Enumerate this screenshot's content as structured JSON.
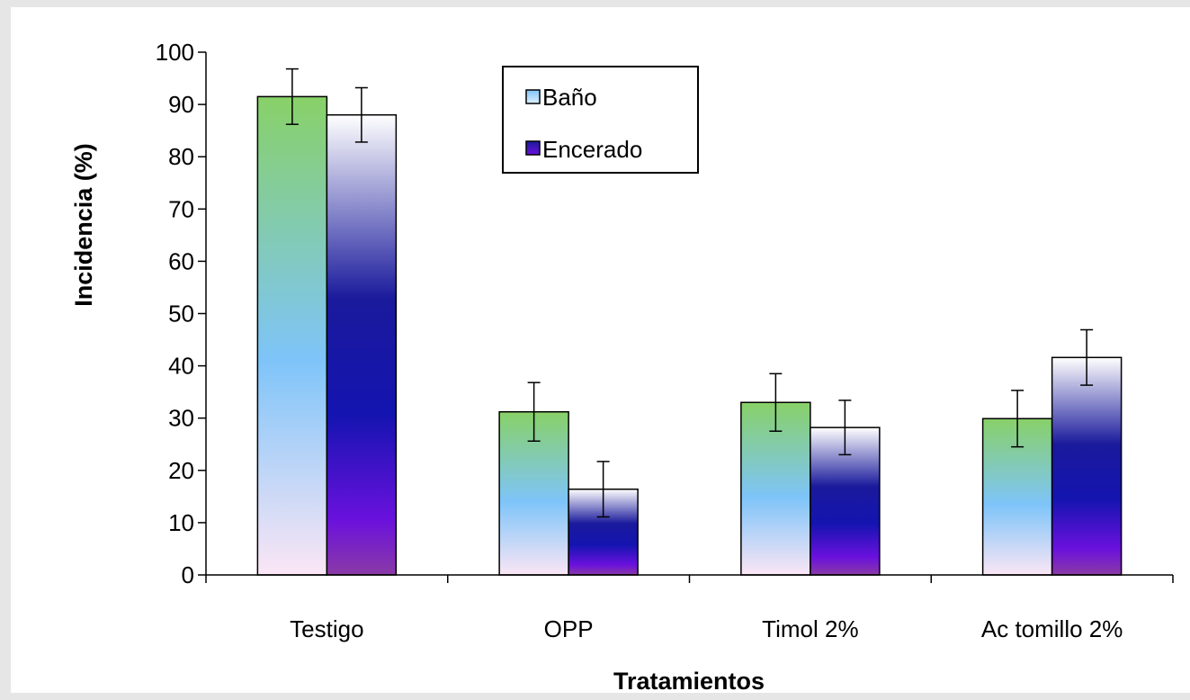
{
  "chart_data": {
    "type": "bar",
    "title": "",
    "xlabel": "Tratamientos",
    "ylabel": "Incidencia (%)",
    "categories": [
      "Testigo",
      "OPP",
      "Timol 2%",
      "Ac tomillo 2%"
    ],
    "ylim": [
      0,
      100
    ],
    "yticks": [
      "0",
      "10",
      "20",
      "30",
      "40",
      "50",
      "60",
      "70",
      "80",
      "90",
      "100"
    ],
    "grid": false,
    "legend_position": "top-center",
    "error_bars": true,
    "series": [
      {
        "name": "Baño",
        "values": [
          91.5,
          31.2,
          33.0,
          29.9
        ],
        "errors": [
          5.3,
          5.6,
          5.5,
          5.4
        ],
        "colors": [
          "#fbe6f5",
          "#7ec4f9",
          "#88d168"
        ]
      },
      {
        "name": "Encerado",
        "values": [
          88.0,
          16.4,
          28.2,
          41.6
        ],
        "errors": [
          5.2,
          5.3,
          5.2,
          5.3
        ],
        "colors": [
          "#8a3aa6",
          "#6a11dd",
          "#1414b0",
          "#1a1a9c",
          "#ffffff"
        ]
      }
    ]
  }
}
